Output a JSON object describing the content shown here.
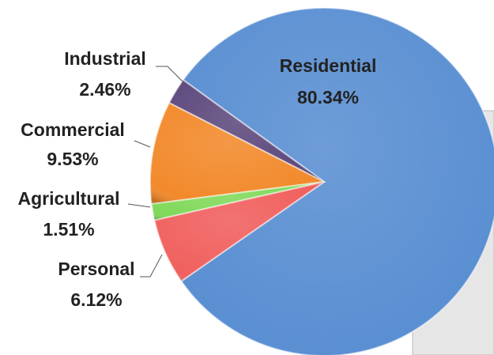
{
  "chart_data": {
    "type": "pie",
    "categories": [
      "Residential",
      "Industrial",
      "Commercial",
      "Agricultural",
      "Personal"
    ],
    "values": [
      80.34,
      2.46,
      9.53,
      1.51,
      6.12
    ],
    "value_labels": [
      "80.34%",
      "2.46%",
      "9.53%",
      "1.51%",
      "6.12%"
    ],
    "colors": [
      "#5a8fd2",
      "#5e4a7e",
      "#f28a2c",
      "#80d95a",
      "#f0605e"
    ]
  }
}
